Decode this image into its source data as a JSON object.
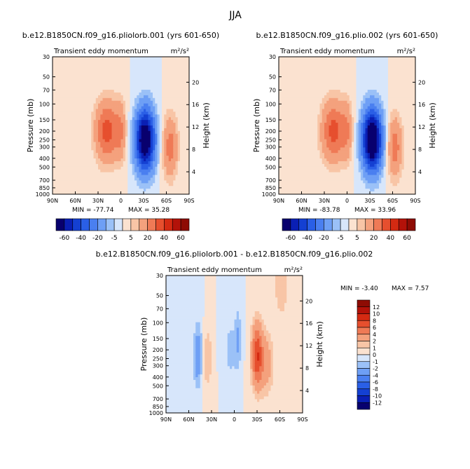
{
  "figure": {
    "title": "JJA"
  },
  "chart_data": [
    {
      "type": "heatmap",
      "title": "b.e12.B1850CN.f09_g16.pliolorb.001 (yrs 601-650)",
      "subtitle_left": "Transient eddy momentum",
      "units": "m²/s²",
      "ylabel": "Pressure (mb)",
      "ylabel_right": "Height (km)",
      "x_ticks": [
        "90N",
        "60N",
        "30N",
        "0",
        "30S",
        "60S",
        "90S"
      ],
      "xlim": [
        90,
        -90
      ],
      "y_ticks_pressure": [
        30,
        50,
        70,
        100,
        150,
        200,
        250,
        300,
        400,
        500,
        700,
        850,
        1000
      ],
      "ylim_pressure": [
        1000,
        30
      ],
      "y_scale": "log",
      "y_ticks_height_km": [
        4,
        8,
        12,
        16,
        20
      ],
      "min_label": "MIN = -77.74",
      "max_label": "MAX = 35.28",
      "min": -77.74,
      "max": 35.28,
      "colorbar": {
        "orientation": "horizontal",
        "tick_labels": [
          "-60",
          "-40",
          "-20",
          "-5",
          "5",
          "20",
          "40",
          "60"
        ],
        "levels": [
          -70,
          -60,
          -50,
          -40,
          -30,
          -20,
          -10,
          -5,
          0,
          5,
          10,
          20,
          30,
          40,
          50,
          60,
          70
        ]
      },
      "features": [
        {
          "lat": 18,
          "p": 200,
          "value": 35,
          "kind": "positive max",
          "lon_spread": 11
        },
        {
          "lat": -32,
          "p": 250,
          "value": -78,
          "kind": "negative min",
          "lon_spread": 9
        },
        {
          "lat": -65,
          "p": 300,
          "value": 25,
          "kind": "positive max",
          "lon_spread": 7
        },
        {
          "lat": 0,
          "p": 200,
          "value": 15,
          "kind": "positive max",
          "lon_spread": 5
        }
      ]
    },
    {
      "type": "heatmap",
      "title": "b.e12.B1850CN.f09_g16.plio.002 (yrs 601-650)",
      "subtitle_left": "Transient eddy momentum",
      "units": "m²/s²",
      "ylabel": "Pressure (mb)",
      "ylabel_right": "Height (km)",
      "x_ticks": [
        "90N",
        "60N",
        "30N",
        "0",
        "30S",
        "60S",
        "90S"
      ],
      "xlim": [
        90,
        -90
      ],
      "y_ticks_pressure": [
        30,
        50,
        70,
        100,
        150,
        200,
        250,
        300,
        400,
        500,
        700,
        850,
        1000
      ],
      "ylim_pressure": [
        1000,
        30
      ],
      "y_scale": "log",
      "y_ticks_height_km": [
        4,
        8,
        12,
        16,
        20
      ],
      "min_label": "MIN = -83.78",
      "max_label": "MAX = 33.96",
      "min": -83.78,
      "max": 33.96,
      "colorbar": {
        "orientation": "horizontal",
        "tick_labels": [
          "-60",
          "-40",
          "-20",
          "-5",
          "5",
          "20",
          "40",
          "60"
        ],
        "levels": [
          -70,
          -60,
          -50,
          -40,
          -30,
          -20,
          -10,
          -5,
          0,
          5,
          10,
          20,
          30,
          40,
          50,
          60,
          70
        ]
      },
      "features": [
        {
          "lat": 18,
          "p": 200,
          "value": 34,
          "kind": "positive max",
          "lon_spread": 11
        },
        {
          "lat": -33,
          "p": 250,
          "value": -84,
          "kind": "negative min",
          "lon_spread": 9
        },
        {
          "lat": -63,
          "p": 300,
          "value": 25,
          "kind": "positive max",
          "lon_spread": 7
        },
        {
          "lat": 0,
          "p": 200,
          "value": 15,
          "kind": "positive max",
          "lon_spread": 5
        }
      ]
    },
    {
      "type": "heatmap",
      "title": "b.e12.B1850CN.f09_g16.pliolorb.001 - b.e12.B1850CN.f09_g16.plio.002",
      "subtitle_left": "Transient eddy momentum",
      "units": "m²/s²",
      "ylabel": "Pressure (mb)",
      "ylabel_right": "Height (km)",
      "x_ticks": [
        "90N",
        "60N",
        "30N",
        "0",
        "30S",
        "60S",
        "90S"
      ],
      "xlim": [
        90,
        -90
      ],
      "y_ticks_pressure": [
        30,
        50,
        70,
        100,
        150,
        200,
        250,
        300,
        400,
        500,
        700,
        850,
        1000
      ],
      "ylim_pressure": [
        1000,
        30
      ],
      "y_scale": "log",
      "y_ticks_height_km": [
        4,
        8,
        12,
        16,
        20
      ],
      "min_label": "MIN = -3.40",
      "max_label": "MAX = 7.57",
      "min": -3.4,
      "max": 7.57,
      "colorbar": {
        "orientation": "vertical",
        "tick_labels": [
          "12",
          "10",
          "8",
          "6",
          "4",
          "2",
          "1",
          "0",
          "-1",
          "-2",
          "-4",
          "-6",
          "-8",
          "-10",
          "-12"
        ],
        "levels": [
          -14,
          -12,
          -10,
          -8,
          -6,
          -4,
          -2,
          -1,
          0,
          1,
          2,
          4,
          6,
          8,
          10,
          12,
          14
        ]
      },
      "features": [
        {
          "lat": -30,
          "p": 230,
          "value": 7.5,
          "kind": "positive max",
          "lon_spread": 5
        },
        {
          "lat": -42,
          "p": 280,
          "value": 3,
          "kind": "positive",
          "lon_spread": 7
        },
        {
          "lat": 48,
          "p": 230,
          "value": -3.4,
          "kind": "negative min",
          "lon_spread": 4
        },
        {
          "lat": 35,
          "p": 250,
          "value": 2,
          "kind": "positive",
          "lon_spread": 4
        },
        {
          "lat": 5,
          "p": 200,
          "value": -1.5,
          "kind": "negative",
          "lon_spread": 6
        },
        {
          "lat": -5,
          "p": 150,
          "value": -2,
          "kind": "negative",
          "lon_spread": 3
        },
        {
          "lat": -62,
          "p": 40,
          "value": 2,
          "kind": "positive",
          "lon_spread": 6
        }
      ]
    }
  ]
}
